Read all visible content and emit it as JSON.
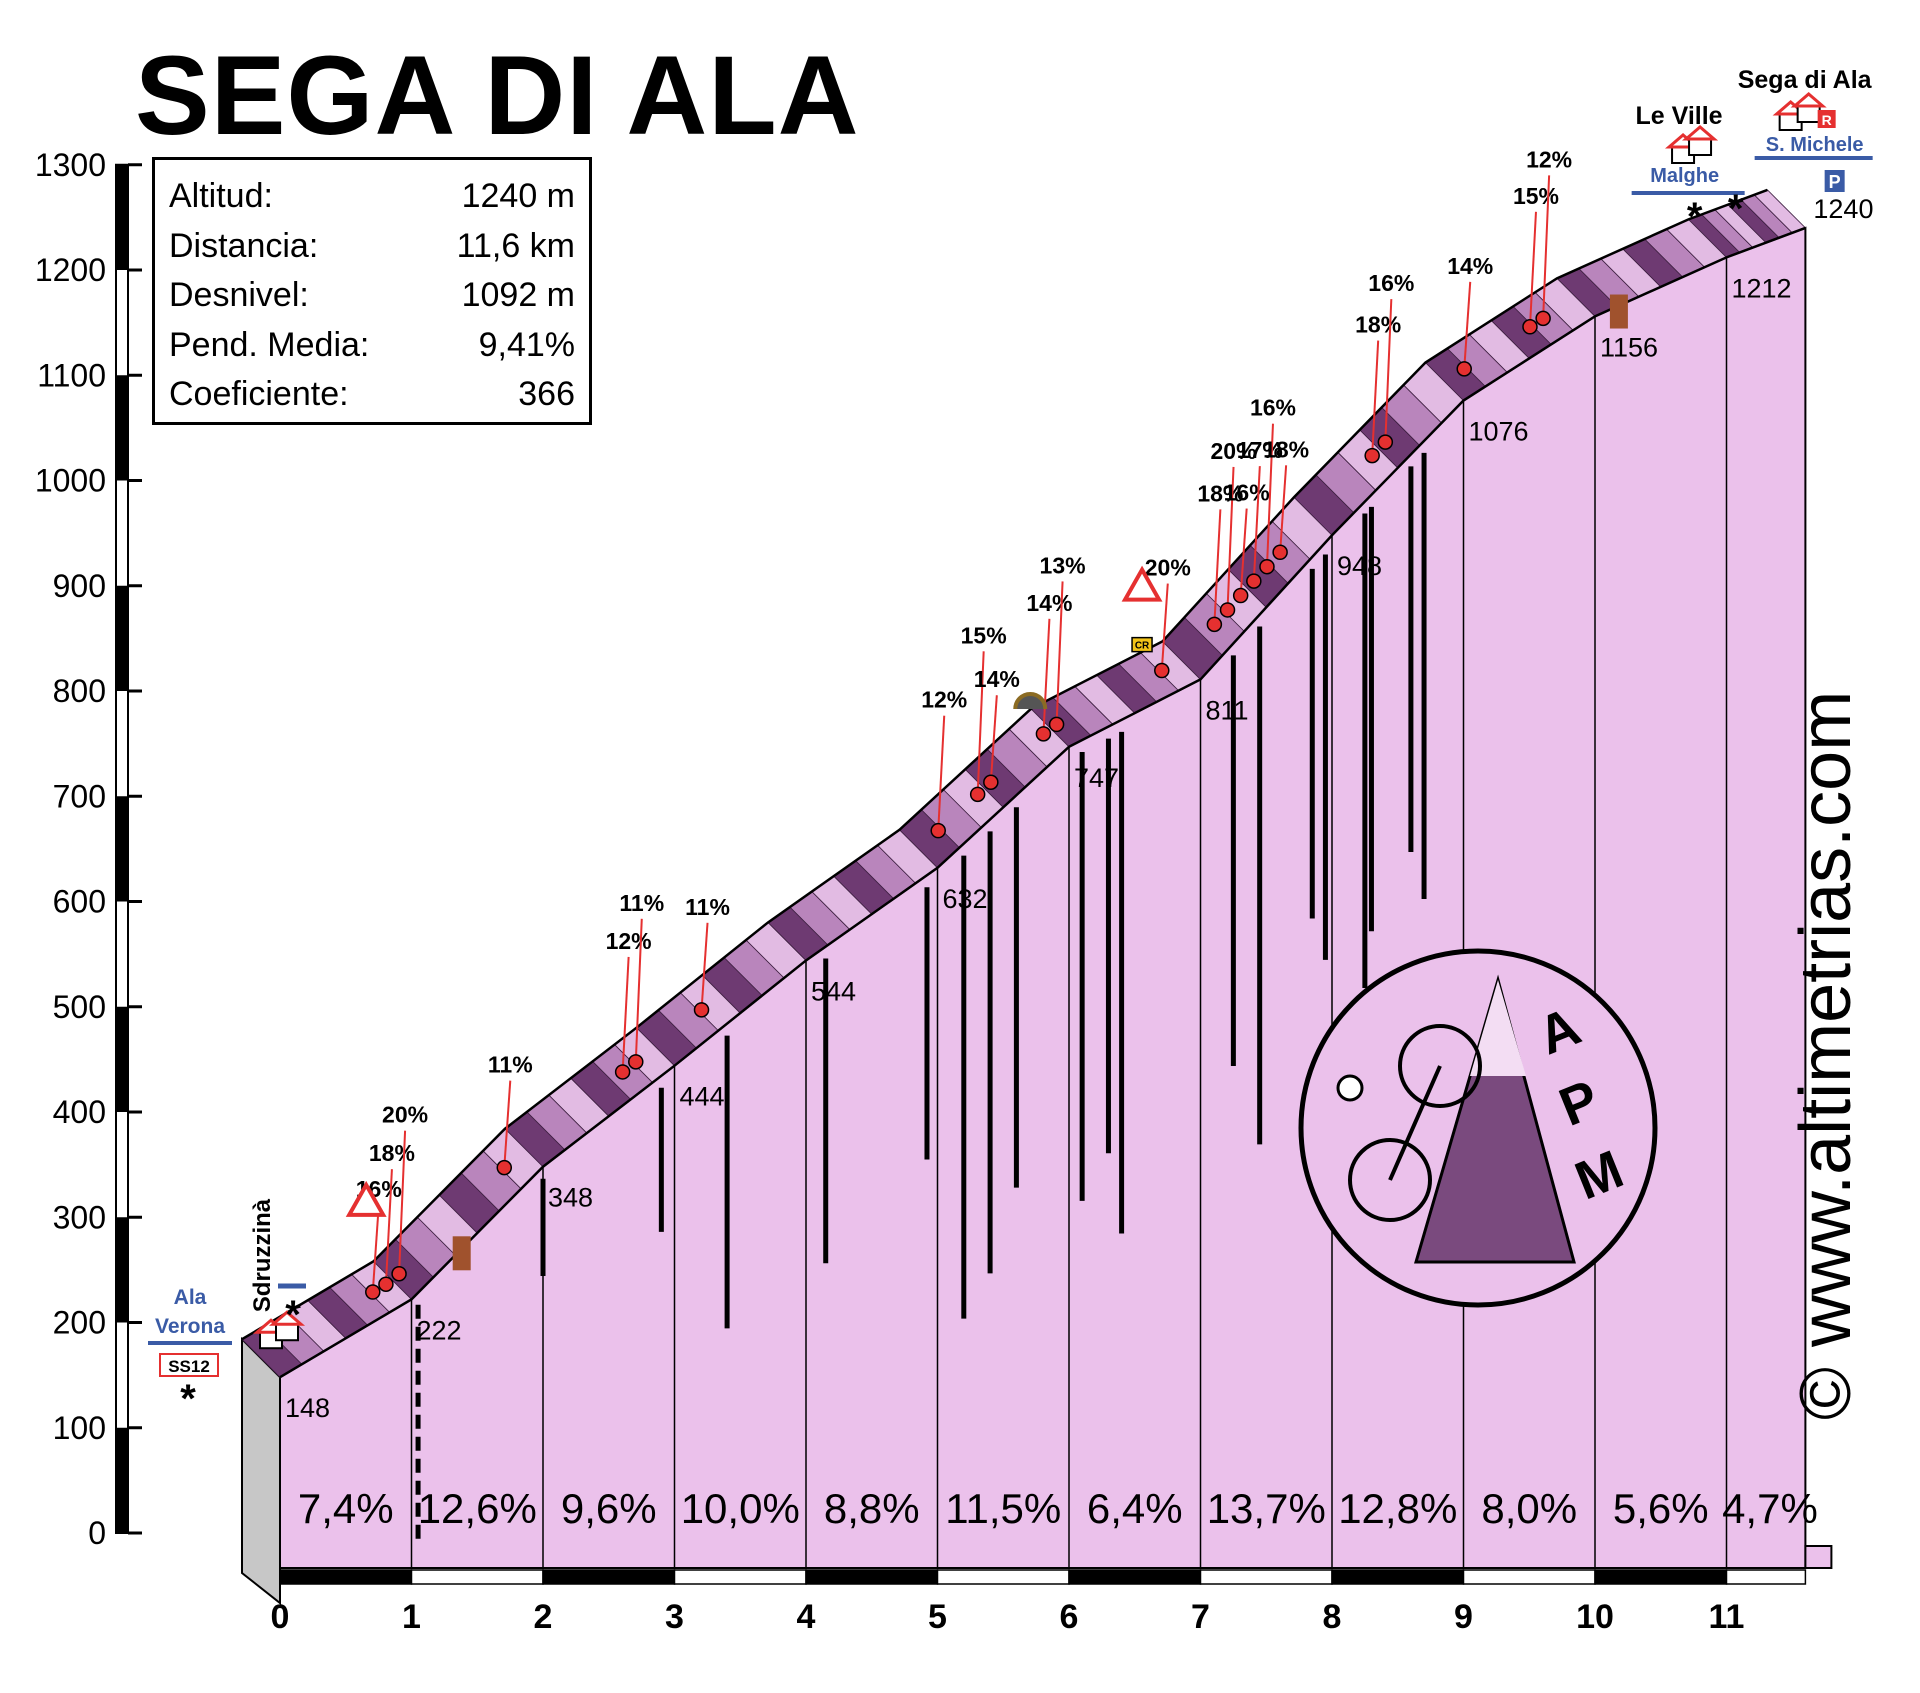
{
  "title": "SEGA DI ALA",
  "stats": [
    {
      "label": "Altitud:",
      "value": "1240 m"
    },
    {
      "label": "Distancia:",
      "value": "11,6 km"
    },
    {
      "label": "Desnivel:",
      "value": "1092 m"
    },
    {
      "label": "Pend. Media:",
      "value": "9,41%"
    },
    {
      "label": "Coeficiente:",
      "value": "366"
    }
  ],
  "watermark": "© www.altimetrias.com",
  "logo_text": [
    "A",
    "P",
    "M"
  ],
  "chart_data": {
    "type": "area",
    "title": "SEGA DI ALA",
    "xlabel": "",
    "ylabel": "",
    "xlim": [
      0,
      11.6
    ],
    "ylim": [
      0,
      1300
    ],
    "x_ticks": [
      0,
      1,
      2,
      3,
      4,
      5,
      6,
      7,
      8,
      9,
      10,
      11
    ],
    "y_ticks": [
      0,
      100,
      200,
      300,
      400,
      500,
      600,
      700,
      800,
      900,
      1000,
      1100,
      1200,
      1300
    ],
    "x": [
      0,
      1,
      2,
      3,
      4,
      5,
      6,
      7,
      8,
      9,
      10,
      11,
      11.6
    ],
    "elevation": [
      148,
      222,
      348,
      444,
      544,
      632,
      747,
      811,
      948,
      1076,
      1156,
      1212,
      1240
    ],
    "elevation_labels": [
      "148",
      "222",
      "348",
      "444",
      "544",
      "632",
      "747",
      "811",
      "948",
      "1076",
      "1156",
      "1212",
      "1240"
    ],
    "segment_gradients": [
      "7,4%",
      "12,6%",
      "9,6%",
      "10,0%",
      "8,8%",
      "11,5%",
      "6,4%",
      "13,7%",
      "12,8%",
      "8,0%",
      "5,6%",
      "4,7%"
    ],
    "steep_points": [
      {
        "km": 0.85,
        "label": "16%"
      },
      {
        "km": 0.95,
        "label": "18%"
      },
      {
        "km": 1.05,
        "label": "20%"
      },
      {
        "km": 1.85,
        "label": "11%"
      },
      {
        "km": 2.75,
        "label": "12%"
      },
      {
        "km": 2.85,
        "label": "11%"
      },
      {
        "km": 3.35,
        "label": "11%"
      },
      {
        "km": 5.15,
        "label": "12%"
      },
      {
        "km": 5.45,
        "label": "15%"
      },
      {
        "km": 5.55,
        "label": "14%"
      },
      {
        "km": 5.95,
        "label": "14%"
      },
      {
        "km": 6.05,
        "label": "13%"
      },
      {
        "km": 6.85,
        "label": "20%"
      },
      {
        "km": 7.25,
        "label": "18%"
      },
      {
        "km": 7.35,
        "label": "20%"
      },
      {
        "km": 7.45,
        "label": "16%"
      },
      {
        "km": 7.55,
        "label": "17%"
      },
      {
        "km": 7.65,
        "label": "16%"
      },
      {
        "km": 7.75,
        "label": "18%"
      },
      {
        "km": 8.45,
        "label": "18%"
      },
      {
        "km": 8.55,
        "label": "16%"
      },
      {
        "km": 9.15,
        "label": "14%"
      },
      {
        "km": 9.65,
        "label": "15%"
      },
      {
        "km": 9.75,
        "label": "12%"
      }
    ],
    "places": [
      {
        "name": "Sdruzzinà",
        "km": -0.2
      },
      {
        "name": "Le Ville",
        "km": 10.7
      },
      {
        "name": "Sega di Ala",
        "km": 11.1
      }
    ],
    "road_signs": [
      "Ala",
      "Verona",
      "SS12",
      "Malghe",
      "S. Michele",
      "P",
      "R",
      "CR"
    ]
  },
  "colors": {
    "area_fill": "#EBC1EB",
    "road_dark": "#6E3A72",
    "road_mid": "#B985BC",
    "road_light": "#E2BBE3",
    "side_grey": "#C7C7C7",
    "marker_red": "#E53030",
    "sign_blue": "#3A5BA6",
    "brown": "#A0522D"
  }
}
